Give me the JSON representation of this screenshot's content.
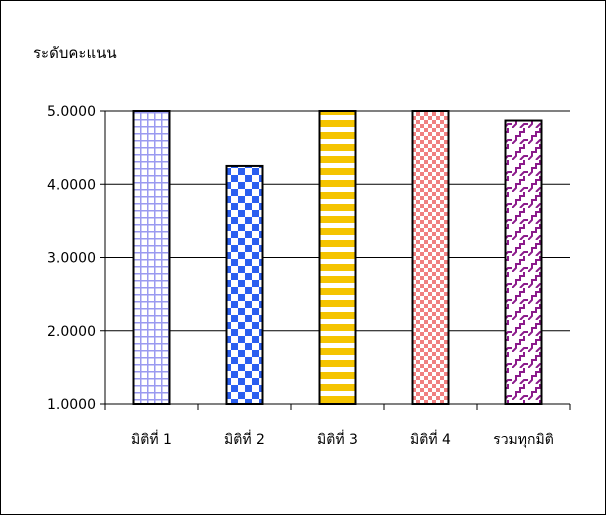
{
  "chart_data": {
    "type": "bar",
    "ylabel": "ระดับคะแนน",
    "xlabel": "",
    "categories": [
      "มิติที่ 1",
      "มิติที่ 2",
      "มิติที่ 3",
      "มิติที่ 4",
      "รวมทุกมิติ"
    ],
    "values": [
      5.0,
      4.25,
      5.0,
      5.0,
      4.87
    ],
    "ylim": [
      1.0,
      5.0
    ],
    "yticks": [
      "1.0000",
      "2.0000",
      "3.0000",
      "4.0000",
      "5.0000"
    ],
    "grid": true,
    "legend": "none",
    "bar_patterns": [
      "grid",
      "checker",
      "horizontal-stripes",
      "dots",
      "diagonal-zigzag"
    ],
    "bar_colors": [
      "#9a9af0",
      "#2b5ff0",
      "#f5c400",
      "#f08080",
      "#8b1a8b"
    ]
  }
}
